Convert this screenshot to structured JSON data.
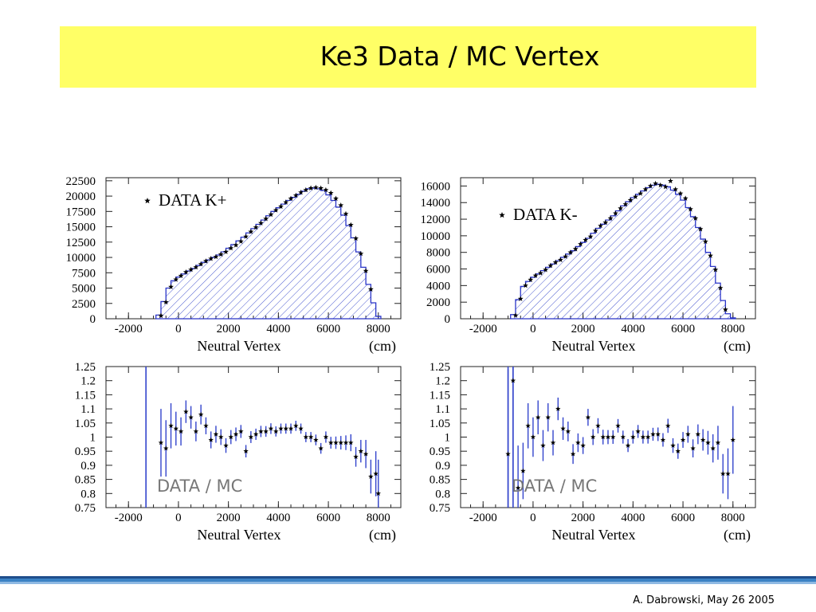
{
  "slide": {
    "title": "Ke3 Data / MC Vertex",
    "footer": "A. Dabrowski, May 26 2005",
    "accent_yellow": "#ffff66",
    "bar_colors": [
      "#1f4e8c",
      "#3b82c4",
      "#8fb9e3"
    ]
  },
  "chart_data": [
    {
      "type": "histogram",
      "legend": "DATA  K+",
      "xlabel": "Neutral Vertex",
      "xunit": "(cm)",
      "xlim": [
        -2900,
        8900
      ],
      "ylim": [
        0,
        23000
      ],
      "xticks": [
        -2000,
        0,
        2000,
        4000,
        6000,
        8000
      ],
      "yticks": [
        0,
        2500,
        5000,
        7500,
        10000,
        12500,
        15000,
        17500,
        20000,
        22500
      ],
      "mc_line_color": "#2a35c8",
      "hatch_color": "#4a5ad0",
      "mc": {
        "x": [
          -800,
          -600,
          -400,
          -200,
          0,
          200,
          400,
          600,
          800,
          1000,
          1200,
          1400,
          1600,
          1800,
          2000,
          2200,
          2400,
          2600,
          2800,
          3000,
          3200,
          3400,
          3600,
          3800,
          4000,
          4200,
          4400,
          4600,
          4800,
          5000,
          5200,
          5400,
          5600,
          5800,
          6000,
          6200,
          6400,
          6600,
          6800,
          7000,
          7200,
          7400,
          7600,
          7800,
          8000
        ],
        "y": [
          600,
          2800,
          5000,
          6200,
          6800,
          7300,
          7800,
          8200,
          8700,
          9200,
          9600,
          10000,
          10400,
          10900,
          11500,
          12100,
          12700,
          13300,
          14000,
          14700,
          15400,
          16100,
          16800,
          17500,
          18100,
          18700,
          19300,
          19800,
          20300,
          20800,
          21200,
          21300,
          21200,
          20900,
          20200,
          19300,
          18200,
          16900,
          15200,
          13200,
          10900,
          8400,
          5600,
          2600,
          400
        ]
      },
      "data": {
        "x": [
          -700,
          -500,
          -300,
          -100,
          100,
          300,
          500,
          700,
          900,
          1100,
          1300,
          1500,
          1700,
          1900,
          2100,
          2300,
          2500,
          2700,
          2900,
          3100,
          3300,
          3500,
          3700,
          3900,
          4100,
          4300,
          4500,
          4700,
          4900,
          5100,
          5300,
          5500,
          5700,
          5900,
          6100,
          6300,
          6500,
          6700,
          6900,
          7100,
          7300,
          7500,
          7700
        ],
        "y": [
          500,
          2700,
          5200,
          6400,
          7000,
          7600,
          8000,
          8400,
          8900,
          9400,
          9800,
          10100,
          10500,
          10900,
          11500,
          12000,
          12600,
          13400,
          14200,
          14900,
          15600,
          16300,
          17000,
          17700,
          18300,
          19000,
          19600,
          20100,
          20600,
          21000,
          21300,
          21400,
          21300,
          21000,
          20500,
          19600,
          18500,
          17100,
          15300,
          13100,
          10600,
          7800,
          4800
        ]
      }
    },
    {
      "type": "histogram",
      "legend": "DATA  K-",
      "xlabel": "Neutral Vertex",
      "xunit": "(cm)",
      "xlim": [
        -2900,
        8900
      ],
      "ylim": [
        0,
        17000
      ],
      "xticks": [
        -2000,
        0,
        2000,
        4000,
        6000,
        8000
      ],
      "yticks": [
        0,
        2000,
        4000,
        6000,
        8000,
        10000,
        12000,
        14000,
        16000
      ],
      "mc_line_color": "#2a35c8",
      "hatch_color": "#4a5ad0",
      "mc": {
        "x": [
          -800,
          -600,
          -400,
          -200,
          0,
          200,
          400,
          600,
          800,
          1000,
          1200,
          1400,
          1600,
          1800,
          2000,
          2200,
          2400,
          2600,
          2800,
          3000,
          3200,
          3400,
          3600,
          3800,
          4000,
          4200,
          4400,
          4600,
          4800,
          5000,
          5200,
          5400,
          5600,
          5800,
          6000,
          6200,
          6400,
          6600,
          6800,
          7000,
          7200,
          7400,
          7600,
          7800,
          8000
        ],
        "y": [
          500,
          2300,
          3900,
          4500,
          5000,
          5400,
          5800,
          6200,
          6600,
          7000,
          7400,
          7800,
          8200,
          8700,
          9200,
          9700,
          10300,
          10900,
          11400,
          11900,
          12400,
          13000,
          13600,
          14100,
          14600,
          15000,
          15400,
          15800,
          16100,
          16200,
          16100,
          15900,
          15500,
          15000,
          14300,
          13400,
          12300,
          11000,
          9600,
          8000,
          6300,
          4300,
          2200,
          600,
          100
        ]
      },
      "data": {
        "x": [
          -700,
          -500,
          -300,
          -100,
          100,
          300,
          500,
          700,
          900,
          1100,
          1300,
          1500,
          1700,
          1900,
          2100,
          2300,
          2500,
          2700,
          2900,
          3100,
          3300,
          3500,
          3700,
          3900,
          4100,
          4300,
          4500,
          4700,
          4900,
          5100,
          5300,
          5500,
          5700,
          5900,
          6100,
          6300,
          6500,
          6700,
          6900,
          7100,
          7300,
          7500,
          7700
        ],
        "y": [
          400,
          2400,
          4000,
          4700,
          5200,
          5500,
          5900,
          6400,
          6800,
          7100,
          7500,
          8000,
          8400,
          9000,
          9500,
          9900,
          10600,
          11200,
          11600,
          12100,
          12700,
          13300,
          13800,
          14300,
          14700,
          15100,
          15600,
          16000,
          16300,
          16100,
          15900,
          16600,
          15600,
          15100,
          14500,
          13200,
          12100,
          10800,
          9300,
          7600,
          5900,
          3700,
          1100
        ]
      }
    },
    {
      "type": "scatter",
      "annotation": "DATA / MC",
      "xlabel": "Neutral Vertex",
      "xunit": "(cm)",
      "xlim": [
        -2900,
        8900
      ],
      "ylim": [
        0.75,
        1.25
      ],
      "xticks": [
        -2000,
        0,
        2000,
        4000,
        6000,
        8000
      ],
      "yticks": [
        0.75,
        0.8,
        0.85,
        0.9,
        0.95,
        1,
        1.05,
        1.1,
        1.15,
        1.2,
        1.25
      ],
      "ytick_labels": [
        "0.75",
        "0.8",
        "0.85",
        "0.9",
        "0.95",
        "1",
        "1.05",
        "1.1",
        "1.15",
        "1.2",
        "1.25"
      ],
      "err_color": "#3344cc",
      "big_bar": {
        "x": -1300,
        "ylo": 0.75,
        "yhi": 1.25
      },
      "points": {
        "x": [
          -700,
          -500,
          -300,
          -100,
          100,
          300,
          500,
          700,
          900,
          1100,
          1300,
          1500,
          1700,
          1900,
          2100,
          2300,
          2500,
          2700,
          2900,
          3100,
          3300,
          3500,
          3700,
          3900,
          4100,
          4300,
          4500,
          4700,
          4900,
          5100,
          5300,
          5500,
          5700,
          5900,
          6100,
          6300,
          6500,
          6700,
          6900,
          7100,
          7300,
          7500,
          7700,
          7900
        ],
        "y": [
          0.98,
          0.96,
          1.04,
          1.03,
          1.02,
          1.09,
          1.07,
          1.02,
          1.08,
          1.04,
          0.99,
          1.01,
          1.0,
          0.97,
          1.0,
          1.01,
          1.02,
          0.95,
          1.0,
          1.01,
          1.02,
          1.02,
          1.03,
          1.02,
          1.03,
          1.03,
          1.03,
          1.04,
          1.03,
          1.0,
          1.0,
          0.99,
          0.96,
          1.0,
          0.98,
          0.98,
          0.98,
          0.98,
          0.98,
          0.93,
          0.95,
          0.94,
          0.86,
          0.87
        ],
        "err": [
          0.12,
          0.1,
          0.08,
          0.06,
          0.05,
          0.04,
          0.04,
          0.035,
          0.035,
          0.03,
          0.03,
          0.03,
          0.028,
          0.026,
          0.025,
          0.024,
          0.023,
          0.022,
          0.021,
          0.02,
          0.02,
          0.019,
          0.019,
          0.018,
          0.018,
          0.018,
          0.018,
          0.018,
          0.018,
          0.018,
          0.018,
          0.019,
          0.019,
          0.02,
          0.021,
          0.022,
          0.024,
          0.026,
          0.03,
          0.035,
          0.04,
          0.05,
          0.06,
          0.08
        ]
      },
      "extra_point": {
        "x": 8000,
        "y": 0.8,
        "err": 0.12
      }
    },
    {
      "type": "scatter",
      "annotation": "DATA / MC",
      "xlabel": "Neutral Vertex",
      "xunit": "(cm)",
      "xlim": [
        -2900,
        8900
      ],
      "ylim": [
        0.75,
        1.25
      ],
      "xticks": [
        -2000,
        0,
        2000,
        4000,
        6000,
        8000
      ],
      "yticks": [
        0.75,
        0.8,
        0.85,
        0.9,
        0.95,
        1,
        1.05,
        1.1,
        1.15,
        1.2,
        1.25
      ],
      "ytick_labels": [
        "0.75",
        "0.8",
        "0.85",
        "0.9",
        "0.95",
        "1",
        "1.05",
        "1.1",
        "1.15",
        "1.2",
        "1.25"
      ],
      "err_color": "#3344cc",
      "big_bars": [
        {
          "x": -1000,
          "ylo": 0.75,
          "yhi": 1.25
        },
        {
          "x": -800,
          "ylo": 0.75,
          "yhi": 1.25
        }
      ],
      "points": {
        "x": [
          -1000,
          -800,
          -600,
          -400,
          -200,
          0,
          200,
          400,
          600,
          800,
          1000,
          1200,
          1400,
          1600,
          1800,
          2000,
          2200,
          2400,
          2600,
          2800,
          3000,
          3200,
          3400,
          3600,
          3800,
          4000,
          4200,
          4400,
          4600,
          4800,
          5000,
          5200,
          5400,
          5600,
          5800,
          6000,
          6200,
          6400,
          6600,
          6800,
          7000,
          7200,
          7400,
          7600,
          7800,
          8000
        ],
        "y": [
          0.94,
          1.2,
          0.82,
          0.88,
          1.04,
          1.0,
          1.07,
          0.97,
          1.07,
          0.98,
          1.1,
          1.03,
          1.02,
          0.94,
          0.98,
          0.97,
          1.07,
          1.0,
          1.04,
          1.0,
          1.0,
          1.0,
          1.04,
          1.0,
          0.97,
          1.0,
          1.02,
          1.0,
          1.0,
          1.01,
          1.01,
          0.99,
          1.04,
          0.97,
          0.95,
          0.99,
          1.01,
          0.96,
          1.01,
          0.99,
          0.98,
          0.96,
          0.98,
          0.87,
          0.87,
          0.99
        ],
        "err": [
          0.3,
          0.35,
          0.15,
          0.1,
          0.08,
          0.07,
          0.06,
          0.055,
          0.05,
          0.045,
          0.04,
          0.04,
          0.035,
          0.035,
          0.033,
          0.03,
          0.03,
          0.028,
          0.027,
          0.026,
          0.025,
          0.024,
          0.024,
          0.023,
          0.023,
          0.023,
          0.023,
          0.023,
          0.023,
          0.023,
          0.024,
          0.024,
          0.025,
          0.026,
          0.027,
          0.028,
          0.03,
          0.032,
          0.035,
          0.038,
          0.042,
          0.05,
          0.06,
          0.07,
          0.09,
          0.12
        ]
      }
    }
  ]
}
